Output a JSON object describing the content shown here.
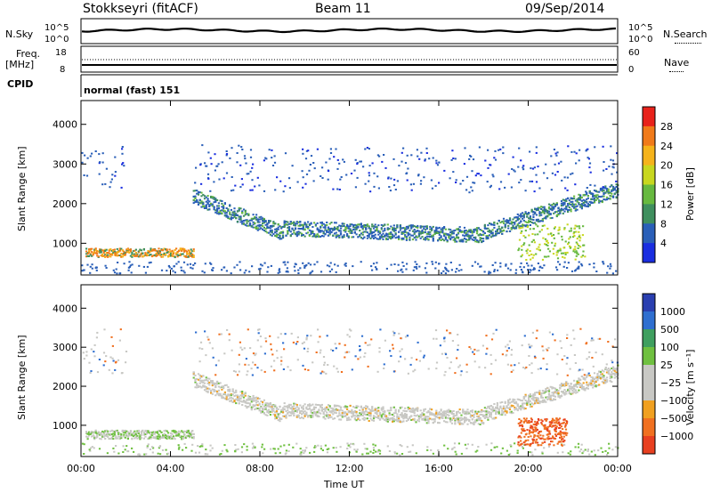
{
  "header": {
    "station": "Stokkseyri (fitACF)",
    "beam": "Beam 11",
    "date": "09/Sep/2014"
  },
  "top_strip": {
    "left_label": "N.Sky",
    "right_label": "N.Search",
    "left_ticks": [
      "10^5",
      "10^0"
    ],
    "right_ticks": [
      "10^5",
      "10^0"
    ]
  },
  "freq_strip": {
    "left_label_line1": "Freq.",
    "left_label_line2": "[MHz]",
    "right_label": "Nave",
    "left_ticks": [
      "18",
      "8"
    ],
    "right_ticks": [
      "60",
      "0"
    ]
  },
  "cpid": {
    "label": "CPID",
    "value": "normal (fast) 151"
  },
  "chart_data": [
    {
      "type": "heatmap",
      "quantity": "Power",
      "ylabel": "Slant Range [km]",
      "xlabel": "",
      "x_ticks": [
        "00:00",
        "04:00",
        "08:00",
        "12:00",
        "16:00",
        "20:00",
        "00:00"
      ],
      "y_ticks": [
        "1000",
        "2000",
        "3000",
        "4000"
      ],
      "ylim": [
        200,
        4600
      ],
      "colorbar_label": "Power [dB]",
      "colorbar_ticks": [
        "28",
        "24",
        "20",
        "16",
        "12",
        "8",
        "4"
      ],
      "colorbar_colors": [
        "#e8221b",
        "#f07a1a",
        "#f5b31b",
        "#c8d71f",
        "#67b93f",
        "#3f8f5e",
        "#2a5fb8",
        "#1a2ee0"
      ]
    },
    {
      "type": "heatmap",
      "quantity": "Velocity",
      "ylabel": "Slant Range [km]",
      "xlabel": "Time UT",
      "x_ticks": [
        "00:00",
        "04:00",
        "08:00",
        "12:00",
        "16:00",
        "20:00",
        "00:00"
      ],
      "y_ticks": [
        "1000",
        "2000",
        "3000",
        "4000"
      ],
      "ylim": [
        200,
        4600
      ],
      "colorbar_label": "Velocity [m s⁻¹]",
      "colorbar_ticks": [
        "1000",
        "500",
        "100",
        "25",
        "−25",
        "−100",
        "−500",
        "−1000"
      ],
      "colorbar_colors": [
        "#2a3fb0",
        "#2f6fd0",
        "#3f9f5f",
        "#6fc040",
        "#c8c8c4",
        "#c8c8c4",
        "#f0a020",
        "#f07020",
        "#e84020"
      ]
    }
  ],
  "colors": {
    "ground_scatter": "#c8c8c4",
    "power_main": "#2a5fb8",
    "power_strong": "#f07a1a"
  }
}
